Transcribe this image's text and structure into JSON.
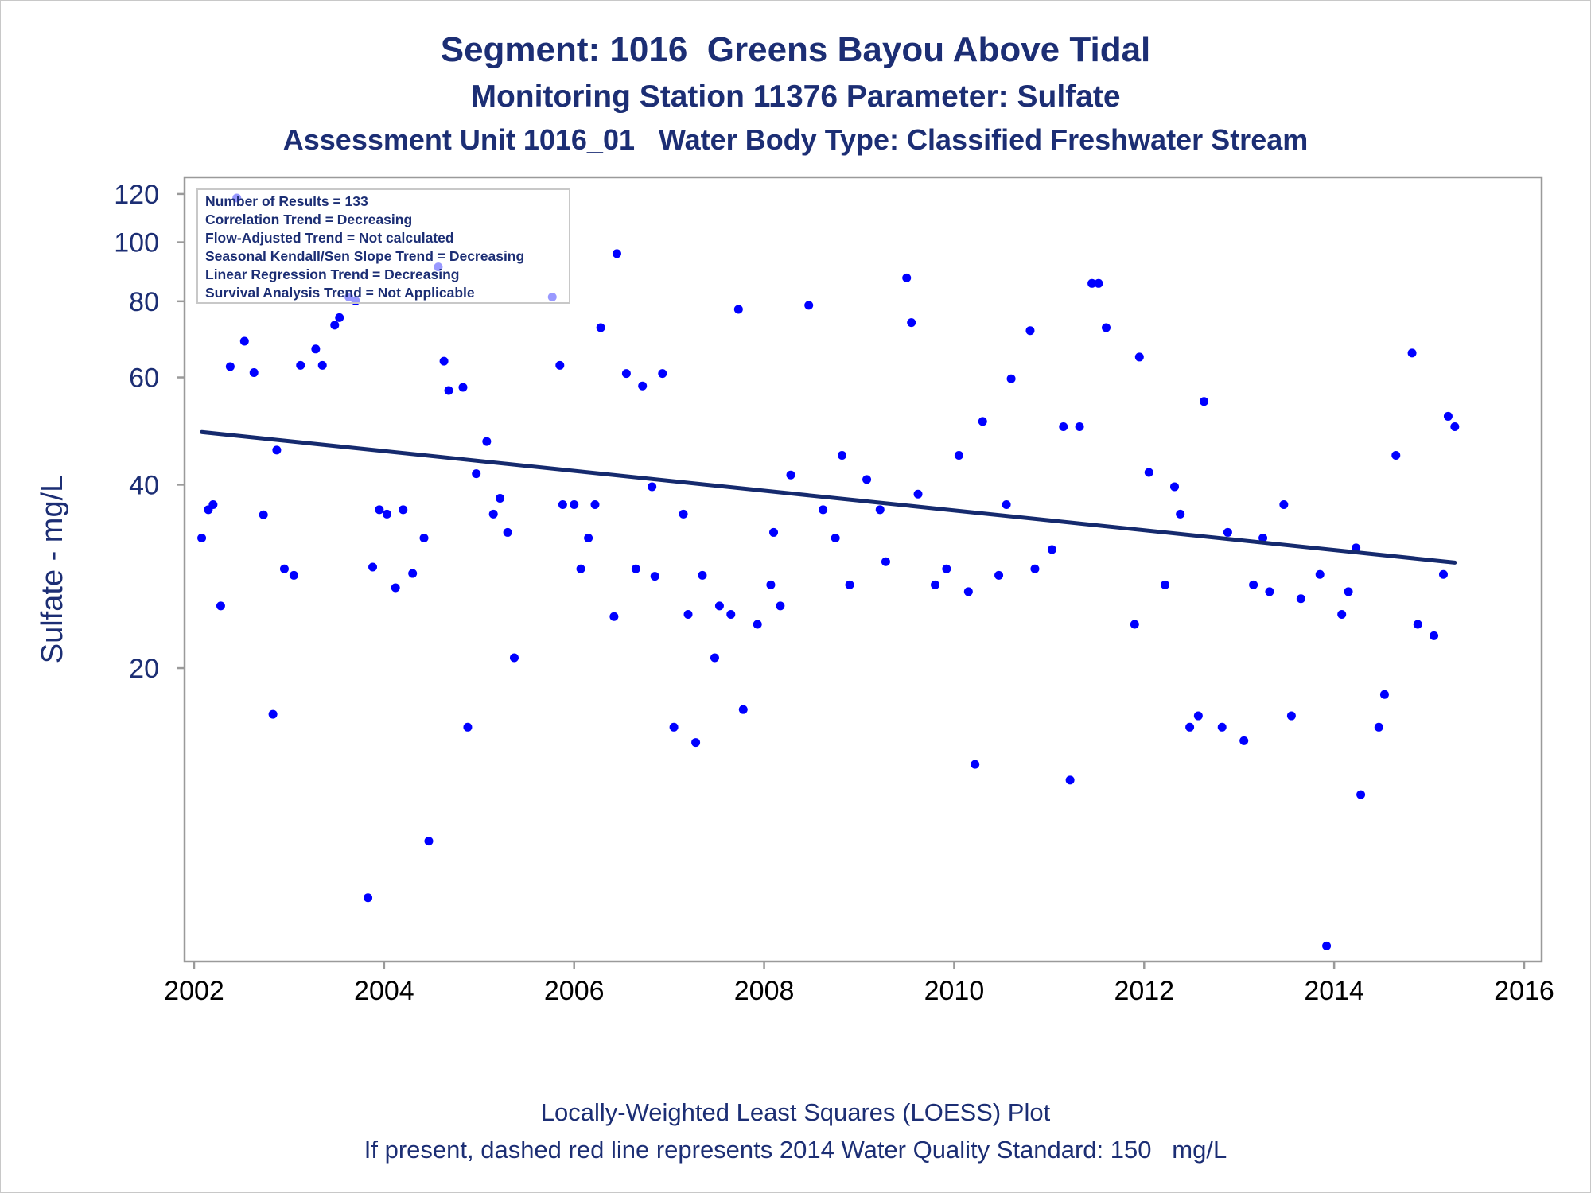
{
  "titles": {
    "line1": "Segment: 1016  Greens Bayou Above Tidal",
    "line2": "Monitoring Station 11376 Parameter: Sulfate",
    "line3": "Assessment Unit 1016_01   Water Body Type: Classified Freshwater Stream"
  },
  "footnotes": {
    "line1": "Locally-Weighted Least Squares (LOESS) Plot",
    "line2": "If present, dashed red line represents 2014 Water Quality Standard: 150   mg/L"
  },
  "info_box": {
    "lines": [
      "Number of Results = 133",
      "Correlation Trend = Decreasing",
      "Flow-Adjusted Trend = Not calculated",
      "Seasonal Kendall/Sen Slope Trend = Decreasing",
      "Linear Regression Trend = Decreasing",
      "Survival Analysis Trend = Not Applicable"
    ]
  },
  "colors": {
    "text": "#1c2e74",
    "points": "#0000ff",
    "trend_line": "#152a6e",
    "axis": "#9a9a9a"
  },
  "chart_data": {
    "type": "scatter",
    "ylabel": "Sulfate - mg/L",
    "xlabel": "",
    "y_scale": "log",
    "xlim": [
      2002,
      2016
    ],
    "ylim": [
      6.8,
      124
    ],
    "x_ticks": [
      "2002",
      "2004",
      "2006",
      "2008",
      "2010",
      "2012",
      "2014",
      "2016"
    ],
    "y_ticks": [
      "20",
      "40",
      "60",
      "80",
      "100",
      "120"
    ],
    "grid": false,
    "legend_position": "top-left",
    "points": [
      [
        2002.08,
        32.7
      ],
      [
        2002.15,
        36.4
      ],
      [
        2002.2,
        37.1
      ],
      [
        2002.28,
        25.3
      ],
      [
        2002.38,
        62.5
      ],
      [
        2002.45,
        118.2
      ],
      [
        2002.53,
        68.8
      ],
      [
        2002.63,
        61.1
      ],
      [
        2002.73,
        35.7
      ],
      [
        2002.83,
        16.8
      ],
      [
        2002.87,
        45.6
      ],
      [
        2002.95,
        29.1
      ],
      [
        2003.05,
        28.4
      ],
      [
        2003.12,
        62.8
      ],
      [
        2003.28,
        66.8
      ],
      [
        2003.35,
        62.8
      ],
      [
        2003.48,
        73.1
      ],
      [
        2003.53,
        75.2
      ],
      [
        2003.63,
        81.3
      ],
      [
        2003.7,
        80.1
      ],
      [
        2003.88,
        29.3
      ],
      [
        2003.95,
        36.4
      ],
      [
        2004.03,
        35.8
      ],
      [
        2004.12,
        27.1
      ],
      [
        2004.2,
        36.4
      ],
      [
        2004.3,
        28.6
      ],
      [
        2004.42,
        32.7
      ],
      [
        2004.47,
        10.4
      ],
      [
        2004.57,
        91.1
      ],
      [
        2004.63,
        63.8
      ],
      [
        2004.68,
        57.1
      ],
      [
        2004.83,
        57.8
      ],
      [
        2004.88,
        16.0
      ],
      [
        2004.97,
        41.7
      ],
      [
        2003.83,
        8.4
      ],
      [
        2005.08,
        47.1
      ],
      [
        2005.15,
        35.8
      ],
      [
        2005.22,
        38.0
      ],
      [
        2005.3,
        33.4
      ],
      [
        2005.37,
        20.8
      ],
      [
        2005.77,
        81.3
      ],
      [
        2005.85,
        62.8
      ],
      [
        2005.88,
        37.1
      ],
      [
        2006.0,
        37.1
      ],
      [
        2006.07,
        29.1
      ],
      [
        2006.15,
        32.7
      ],
      [
        2006.22,
        37.1
      ],
      [
        2006.28,
        72.4
      ],
      [
        2006.42,
        24.3
      ],
      [
        2006.45,
        95.8
      ],
      [
        2006.55,
        60.9
      ],
      [
        2006.65,
        29.1
      ],
      [
        2006.72,
        58.1
      ],
      [
        2006.82,
        39.7
      ],
      [
        2006.85,
        28.3
      ],
      [
        2006.93,
        60.9
      ],
      [
        2007.05,
        16.0
      ],
      [
        2007.15,
        35.8
      ],
      [
        2007.2,
        24.5
      ],
      [
        2007.28,
        15.1
      ],
      [
        2007.35,
        28.4
      ],
      [
        2007.48,
        20.8
      ],
      [
        2007.53,
        25.3
      ],
      [
        2007.65,
        24.5
      ],
      [
        2007.73,
        77.6
      ],
      [
        2007.78,
        17.1
      ],
      [
        2007.93,
        23.6
      ],
      [
        2008.07,
        27.4
      ],
      [
        2008.1,
        33.4
      ],
      [
        2008.17,
        25.3
      ],
      [
        2008.28,
        41.5
      ],
      [
        2008.47,
        78.8
      ],
      [
        2008.62,
        36.4
      ],
      [
        2008.75,
        32.7
      ],
      [
        2008.82,
        44.7
      ],
      [
        2008.9,
        27.4
      ],
      [
        2009.08,
        40.8
      ],
      [
        2009.22,
        36.4
      ],
      [
        2009.28,
        29.9
      ],
      [
        2009.5,
        87.4
      ],
      [
        2009.55,
        73.8
      ],
      [
        2009.62,
        38.6
      ],
      [
        2009.8,
        27.4
      ],
      [
        2009.92,
        29.1
      ],
      [
        2010.05,
        44.7
      ],
      [
        2010.15,
        26.7
      ],
      [
        2010.22,
        13.9
      ],
      [
        2010.3,
        50.8
      ],
      [
        2010.47,
        28.4
      ],
      [
        2010.55,
        37.1
      ],
      [
        2010.6,
        59.7
      ],
      [
        2010.8,
        71.6
      ],
      [
        2010.85,
        29.1
      ],
      [
        2011.03,
        31.3
      ],
      [
        2011.15,
        49.8
      ],
      [
        2011.22,
        13.1
      ],
      [
        2011.32,
        49.8
      ],
      [
        2011.45,
        85.6
      ],
      [
        2011.52,
        85.6
      ],
      [
        2011.6,
        72.4
      ],
      [
        2011.9,
        23.6
      ],
      [
        2011.95,
        64.8
      ],
      [
        2012.05,
        41.9
      ],
      [
        2012.22,
        27.4
      ],
      [
        2012.32,
        39.7
      ],
      [
        2012.38,
        35.8
      ],
      [
        2012.48,
        16.0
      ],
      [
        2012.57,
        16.7
      ],
      [
        2012.63,
        54.8
      ],
      [
        2012.82,
        16.0
      ],
      [
        2012.88,
        33.4
      ],
      [
        2013.05,
        15.2
      ],
      [
        2013.15,
        27.4
      ],
      [
        2013.25,
        32.7
      ],
      [
        2013.32,
        26.7
      ],
      [
        2013.47,
        37.1
      ],
      [
        2013.55,
        16.7
      ],
      [
        2013.65,
        26.0
      ],
      [
        2013.85,
        28.5
      ],
      [
        2013.92,
        7.0
      ],
      [
        2014.08,
        24.5
      ],
      [
        2014.15,
        26.7
      ],
      [
        2014.23,
        31.5
      ],
      [
        2014.28,
        12.4
      ],
      [
        2014.47,
        16.0
      ],
      [
        2014.53,
        18.1
      ],
      [
        2014.65,
        44.7
      ],
      [
        2014.82,
        65.8
      ],
      [
        2014.88,
        23.6
      ],
      [
        2015.05,
        22.6
      ],
      [
        2015.15,
        28.5
      ],
      [
        2015.2,
        51.8
      ],
      [
        2015.27,
        49.8
      ]
    ],
    "series": [
      {
        "type": "line",
        "x": [
          2002.08,
          2015.27
        ],
        "y": [
          48.8,
          29.8
        ]
      }
    ]
  }
}
